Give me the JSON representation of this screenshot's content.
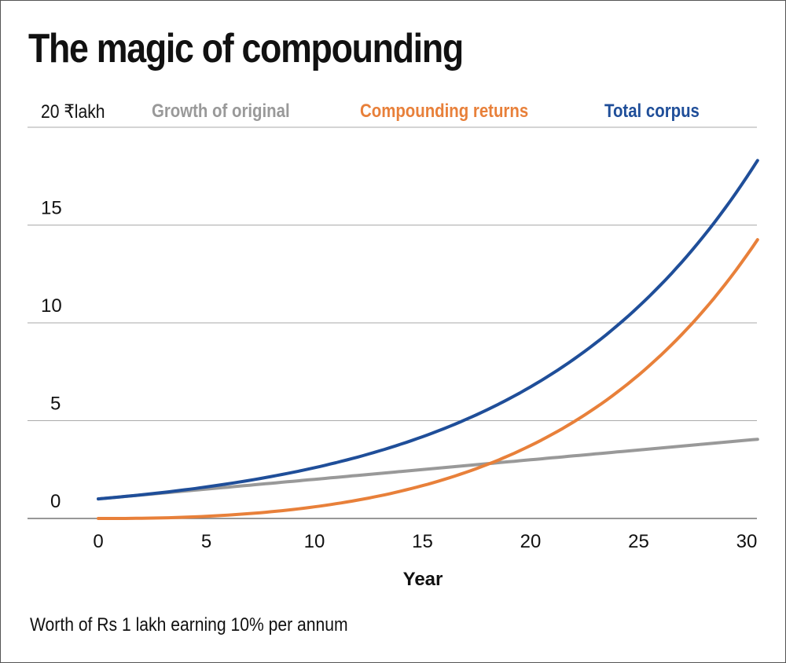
{
  "chart_data": {
    "type": "line",
    "title": "The magic of compounding",
    "unit_label": "20 ₹lakh",
    "xlabel": "Year",
    "ylabel": "₹lakh",
    "footnote": "Worth of Rs 1 lakh earning 10% per annum",
    "xlim": [
      0,
      30
    ],
    "ylim": [
      0,
      20
    ],
    "x_ticks": [
      "0",
      "5",
      "10",
      "15",
      "20",
      "25",
      "30"
    ],
    "y_ticks": [
      "0",
      "5",
      "10",
      "15"
    ],
    "grid": true,
    "legend_placement": "top",
    "x": [
      0,
      2,
      4,
      6,
      8,
      10,
      12,
      14,
      16,
      18,
      20,
      22,
      24,
      26,
      28,
      30
    ],
    "series": [
      {
        "name": "Growth of original",
        "color": "#999999",
        "values": [
          1,
          1.2,
          1.4,
          1.6,
          1.8,
          2,
          2.2,
          2.4,
          2.6,
          2.8,
          3,
          3.2,
          3.4,
          3.6,
          3.8,
          4
        ]
      },
      {
        "name": "Compounding returns",
        "color": "#e8803a",
        "values": [
          0,
          0.01,
          0.06,
          0.17,
          0.34,
          0.59,
          0.94,
          1.4,
          2.0,
          2.76,
          3.73,
          4.94,
          6.45,
          8.32,
          10.62,
          13.45
        ]
      },
      {
        "name": "Total corpus",
        "color": "#1f4e99",
        "values": [
          1,
          1.21,
          1.46,
          1.77,
          2.14,
          2.59,
          3.14,
          3.8,
          4.59,
          5.56,
          6.73,
          8.14,
          9.85,
          11.92,
          14.42,
          17.45
        ]
      }
    ]
  }
}
